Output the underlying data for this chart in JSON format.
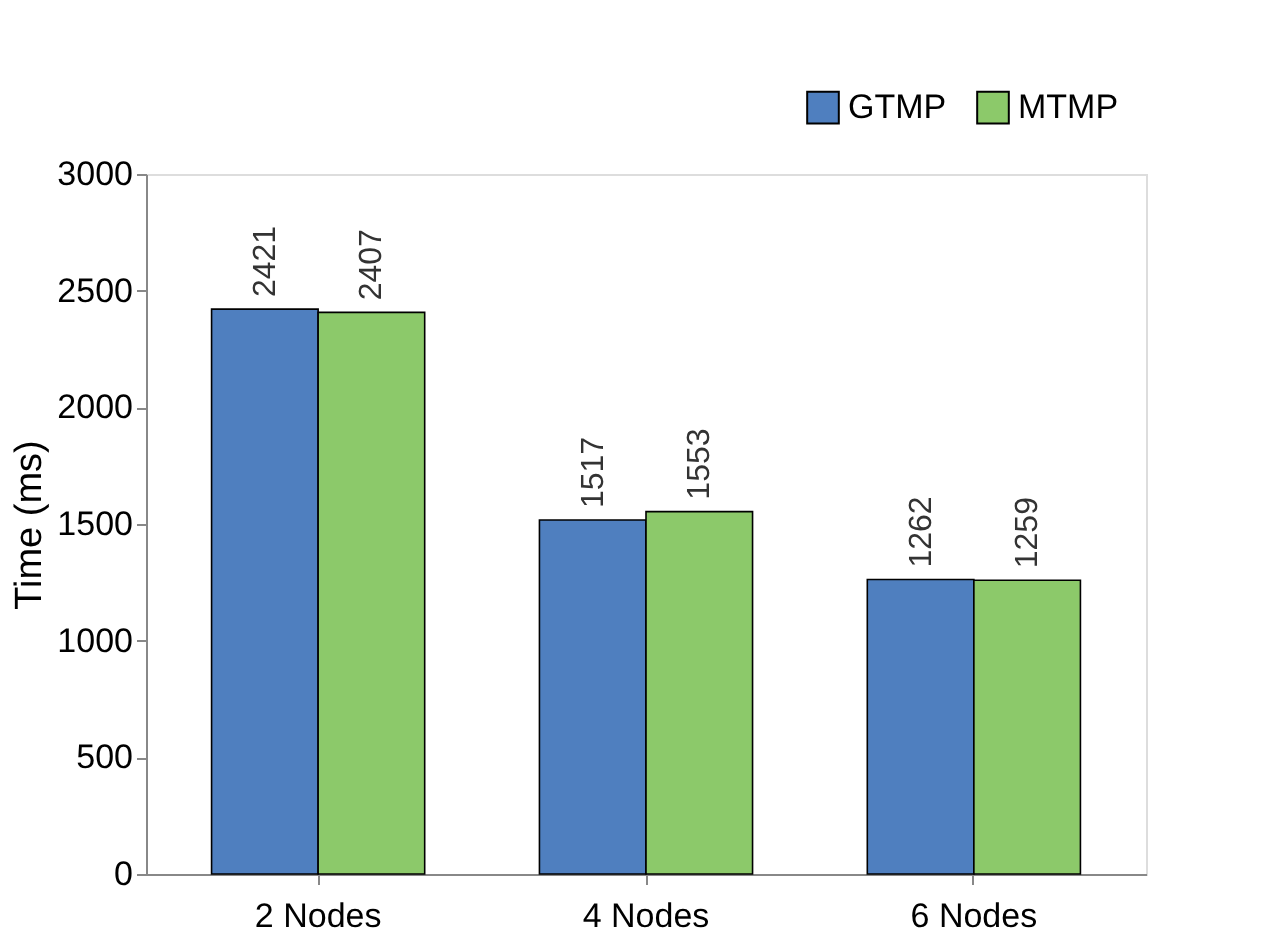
{
  "chart_data": {
    "type": "bar",
    "ylabel": "Time (ms)",
    "categories": [
      "2 Nodes",
      "4 Nodes",
      "6 Nodes"
    ],
    "series": [
      {
        "name": "GTMP",
        "color": "#4f7fbf",
        "values": [
          2421,
          1517,
          1262
        ]
      },
      {
        "name": "MTMP",
        "color": "#8cc96a",
        "values": [
          2407,
          1553,
          1259
        ]
      }
    ],
    "ylim": [
      0,
      3000
    ],
    "yticks": [
      0,
      500,
      1000,
      1500,
      2000,
      2500,
      3000
    ],
    "grid": false,
    "legend": "top right",
    "data_labels": true
  }
}
